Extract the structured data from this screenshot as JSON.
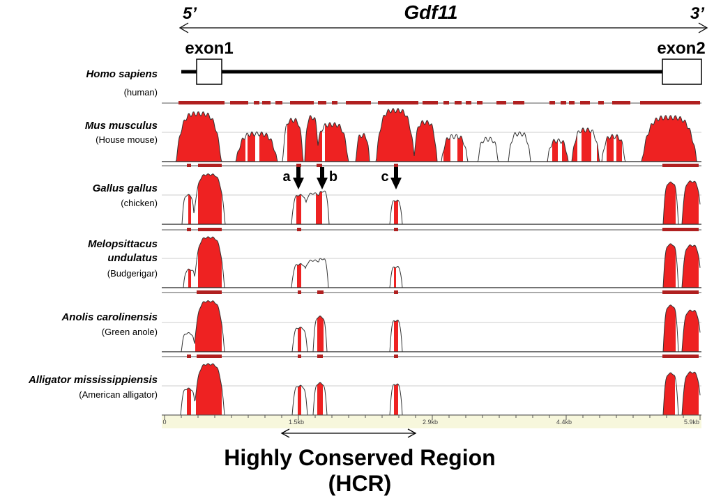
{
  "gene": {
    "name": "Gdf11",
    "end5": "5’",
    "end3": "3’",
    "exon1": "exon1",
    "exon2": "exon2"
  },
  "reference": {
    "name": "Homo sapiens",
    "common": "(human)"
  },
  "tracks": [
    {
      "name_lines": [
        "Mus musculus"
      ],
      "common": "(House mouse)"
    },
    {
      "name_lines": [
        "Gallus gallus"
      ],
      "common": "(chicken)"
    },
    {
      "name_lines": [
        "Melopsittacus",
        "undulatus"
      ],
      "common": "(Budgerigar)"
    },
    {
      "name_lines": [
        "Anolis carolinensis"
      ],
      "common": "(Green anole)"
    },
    {
      "name_lines": [
        "Alligator mississippiensis"
      ],
      "common": "(American alligator)"
    }
  ],
  "markers": [
    "a",
    "b",
    "c"
  ],
  "axis": {
    "ticks": [
      "0",
      "1.5kb",
      "2.9kb",
      "4.4kb",
      "5.9kb"
    ]
  },
  "hcr": {
    "line1": "Highly Conserved Region",
    "line2": "(HCR)"
  },
  "colors": {
    "conserved_fill": "#ee2222",
    "conserved_bar": "#b02020",
    "outline": "#333333",
    "axis_band": "#f7f7dc"
  }
}
